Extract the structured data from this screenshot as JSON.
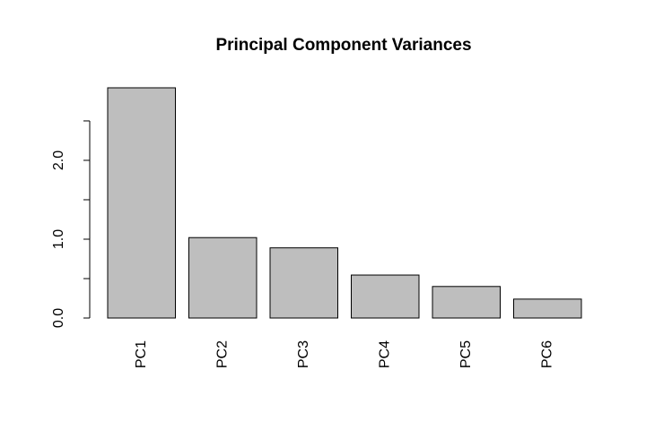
{
  "chart_data": {
    "type": "bar",
    "title": "Principal Component Variances",
    "categories": [
      "PC1",
      "PC2",
      "PC3",
      "PC4",
      "PC5",
      "PC6"
    ],
    "values": [
      2.92,
      1.02,
      0.89,
      0.545,
      0.4,
      0.24
    ],
    "color": "#bebebe",
    "ylim": [
      0,
      2.92
    ],
    "yticks": [
      {
        "value": 0,
        "label": "0.0"
      },
      {
        "value": 1,
        "label": "1.0"
      },
      {
        "value": 2,
        "label": "2.0"
      }
    ],
    "yminorticks": [
      0.5,
      1.5,
      2.5
    ]
  }
}
